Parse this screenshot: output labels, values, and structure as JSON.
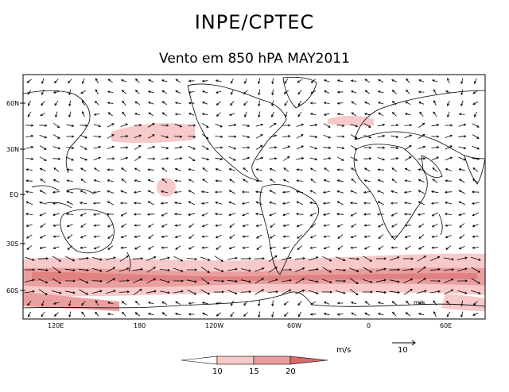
{
  "header": {
    "title": "INPE/CPTEC",
    "subtitle": "Vento em 850 hPA MAY2011"
  },
  "map": {
    "lat_labels": [
      "60N",
      "30N",
      "EQ",
      "30S",
      "60S"
    ],
    "lon_labels": [
      "120E",
      "180",
      "120W",
      "60W",
      "0",
      "60E"
    ],
    "inset_units": "m/s",
    "colors": {
      "border": "#000000",
      "shade_low": "#f7c9c9",
      "shade_mid": "#ea9f9f",
      "shade_high": "#d96a6a",
      "arrow": "#000000"
    }
  },
  "legend": {
    "units_label": "m/s",
    "reference_vector_value": "10",
    "colorbar_ticks": [
      "10",
      "15",
      "20"
    ],
    "colors": [
      "#ffffff",
      "#f7c9c9",
      "#ea9f9f",
      "#d96a6a"
    ]
  }
}
